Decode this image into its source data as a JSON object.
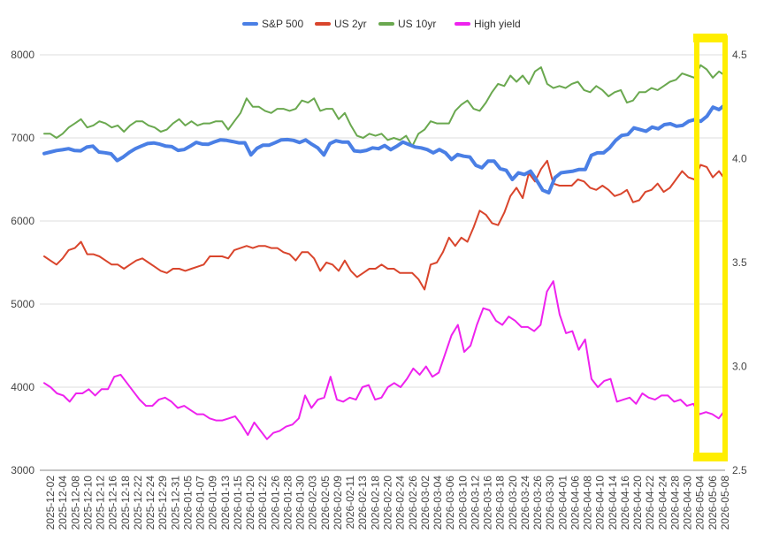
{
  "chart_data": {
    "type": "line",
    "legend_position": "top",
    "grid": true,
    "y_left": {
      "range": [
        3000,
        8000
      ],
      "ticks": [
        3000,
        4000,
        5000,
        6000,
        7000,
        8000
      ],
      "tick_labels": [
        "3000",
        "4000",
        "5000",
        "6000",
        "7000",
        "8000"
      ]
    },
    "y_right": {
      "range": [
        2.5,
        4.5
      ],
      "ticks": [
        2.5,
        3.0,
        3.5,
        4.0,
        4.5
      ],
      "tick_labels": [
        "2.5",
        "3.0",
        "3.5",
        "4.0",
        "4.5"
      ]
    },
    "x_tick_labels": [
      "2025-12-02",
      "2025-12-04",
      "2025-12-08",
      "2025-12-10",
      "2025-12-12",
      "2025-12-16",
      "2025-12-18",
      "2025-12-22",
      "2025-12-24",
      "2025-12-29",
      "2025-12-31",
      "2026-01-05",
      "2026-01-07",
      "2026-01-09",
      "2026-01-13",
      "2026-01-15",
      "2026-01-20",
      "2026-01-22",
      "2026-01-26",
      "2026-01-28",
      "2026-01-30",
      "2026-02-03",
      "2026-02-05",
      "2026-02-09",
      "2026-02-11",
      "2026-02-13",
      "2026-02-18",
      "2026-02-20",
      "2026-02-24",
      "2026-02-26",
      "2026-03-02",
      "2026-03-04",
      "2026-03-06",
      "2026-03-10",
      "2026-03-12",
      "2026-03-16",
      "2026-03-18",
      "2026-03-20",
      "2026-03-24",
      "2026-03-26",
      "2026-03-30",
      "2026-04-01",
      "2026-04-06",
      "2026-04-08",
      "2026-04-10",
      "2026-04-14",
      "2026-04-16",
      "2026-04-20",
      "2026-04-22",
      "2026-04-24",
      "2026-04-28",
      "2026-04-30",
      "2026-05-04",
      "2026-05-06",
      "2026-05-08"
    ],
    "series": [
      {
        "name": "S&P 500",
        "color": "#4a7fe5",
        "axis": "left",
        "width": 4,
        "values": [
          6812,
          6830,
          6848,
          6857,
          6870,
          6848,
          6845,
          6889,
          6901,
          6830,
          6821,
          6808,
          6728,
          6770,
          6827,
          6870,
          6902,
          6932,
          6939,
          6924,
          6901,
          6895,
          6850,
          6860,
          6900,
          6946,
          6926,
          6923,
          6952,
          6977,
          6970,
          6956,
          6940,
          6942,
          6796,
          6874,
          6913,
          6913,
          6944,
          6977,
          6980,
          6970,
          6945,
          6976,
          6924,
          6880,
          6795,
          6932,
          6966,
          6950,
          6950,
          6845,
          6836,
          6850,
          6880,
          6870,
          6907,
          6858,
          6900,
          6950,
          6920,
          6890,
          6880,
          6860,
          6820,
          6860,
          6820,
          6740,
          6800,
          6780,
          6770,
          6670,
          6640,
          6720,
          6720,
          6630,
          6610,
          6500,
          6580,
          6560,
          6600,
          6490,
          6370,
          6340,
          6520,
          6580,
          6590,
          6600,
          6620,
          6620,
          6790,
          6820,
          6820,
          6880,
          6970,
          7030,
          7040,
          7120,
          7100,
          7080,
          7130,
          7110,
          7160,
          7170,
          7140,
          7150,
          7200,
          7220,
          7200,
          7260,
          7370,
          7340,
          7400
        ]
      },
      {
        "name": "US 2yr",
        "color": "#d9452c",
        "axis": "right",
        "width": 2,
        "values": [
          3.53,
          3.51,
          3.49,
          3.52,
          3.56,
          3.57,
          3.6,
          3.54,
          3.54,
          3.53,
          3.51,
          3.49,
          3.49,
          3.47,
          3.49,
          3.51,
          3.52,
          3.5,
          3.48,
          3.46,
          3.45,
          3.47,
          3.47,
          3.46,
          3.47,
          3.48,
          3.49,
          3.53,
          3.53,
          3.53,
          3.52,
          3.56,
          3.57,
          3.58,
          3.57,
          3.58,
          3.58,
          3.57,
          3.57,
          3.55,
          3.54,
          3.51,
          3.55,
          3.55,
          3.52,
          3.46,
          3.5,
          3.49,
          3.46,
          3.51,
          3.46,
          3.43,
          3.45,
          3.47,
          3.47,
          3.49,
          3.47,
          3.47,
          3.45,
          3.45,
          3.45,
          3.42,
          3.37,
          3.49,
          3.5,
          3.55,
          3.62,
          3.58,
          3.62,
          3.6,
          3.67,
          3.75,
          3.73,
          3.69,
          3.68,
          3.74,
          3.82,
          3.86,
          3.81,
          3.93,
          3.89,
          3.95,
          3.99,
          3.88,
          3.87,
          3.87,
          3.87,
          3.9,
          3.89,
          3.86,
          3.85,
          3.87,
          3.85,
          3.82,
          3.83,
          3.85,
          3.79,
          3.8,
          3.84,
          3.85,
          3.88,
          3.84,
          3.86,
          3.9,
          3.94,
          3.91,
          3.9,
          3.97,
          3.96,
          3.91,
          3.94,
          3.9
        ]
      },
      {
        "name": "US 10yr",
        "color": "#6aa84f",
        "axis": "right",
        "width": 2,
        "values": [
          4.12,
          4.12,
          4.1,
          4.12,
          4.15,
          4.17,
          4.19,
          4.15,
          4.16,
          4.18,
          4.17,
          4.15,
          4.16,
          4.13,
          4.16,
          4.18,
          4.18,
          4.16,
          4.15,
          4.13,
          4.14,
          4.17,
          4.19,
          4.16,
          4.18,
          4.16,
          4.17,
          4.17,
          4.18,
          4.18,
          4.14,
          4.18,
          4.22,
          4.29,
          4.25,
          4.25,
          4.23,
          4.22,
          4.24,
          4.24,
          4.23,
          4.24,
          4.28,
          4.27,
          4.29,
          4.23,
          4.24,
          4.24,
          4.19,
          4.22,
          4.16,
          4.11,
          4.1,
          4.12,
          4.11,
          4.12,
          4.09,
          4.1,
          4.09,
          4.11,
          4.06,
          4.12,
          4.14,
          4.18,
          4.17,
          4.17,
          4.17,
          4.23,
          4.26,
          4.28,
          4.24,
          4.23,
          4.27,
          4.32,
          4.36,
          4.35,
          4.4,
          4.37,
          4.4,
          4.36,
          4.42,
          4.44,
          4.36,
          4.34,
          4.35,
          4.34,
          4.36,
          4.37,
          4.33,
          4.32,
          4.35,
          4.33,
          4.3,
          4.32,
          4.33,
          4.27,
          4.28,
          4.32,
          4.32,
          4.34,
          4.33,
          4.35,
          4.37,
          4.38,
          4.41,
          4.4,
          4.39,
          4.45,
          4.43,
          4.39,
          4.42,
          4.4
        ]
      },
      {
        "name": "High yield",
        "color": "#ee22ee",
        "axis": "right",
        "width": 2,
        "values": [
          2.92,
          2.9,
          2.87,
          2.86,
          2.83,
          2.87,
          2.87,
          2.89,
          2.86,
          2.89,
          2.89,
          2.95,
          2.96,
          2.92,
          2.88,
          2.84,
          2.81,
          2.81,
          2.84,
          2.85,
          2.83,
          2.8,
          2.81,
          2.79,
          2.77,
          2.77,
          2.75,
          2.74,
          2.74,
          2.75,
          2.76,
          2.72,
          2.67,
          2.73,
          2.69,
          2.65,
          2.68,
          2.69,
          2.71,
          2.72,
          2.75,
          2.86,
          2.8,
          2.84,
          2.85,
          2.95,
          2.84,
          2.83,
          2.85,
          2.84,
          2.9,
          2.91,
          2.84,
          2.85,
          2.9,
          2.92,
          2.9,
          2.94,
          2.99,
          2.96,
          3.0,
          2.95,
          2.97,
          3.06,
          3.15,
          3.2,
          3.07,
          3.1,
          3.2,
          3.28,
          3.27,
          3.22,
          3.2,
          3.24,
          3.22,
          3.19,
          3.19,
          3.17,
          3.2,
          3.36,
          3.41,
          3.25,
          3.16,
          3.17,
          3.08,
          3.13,
          2.94,
          2.9,
          2.93,
          2.94,
          2.83,
          2.84,
          2.85,
          2.82,
          2.87,
          2.85,
          2.84,
          2.86,
          2.86,
          2.83,
          2.84,
          2.81,
          2.82,
          2.77,
          2.78,
          2.77,
          2.75,
          2.79
        ]
      }
    ]
  }
}
